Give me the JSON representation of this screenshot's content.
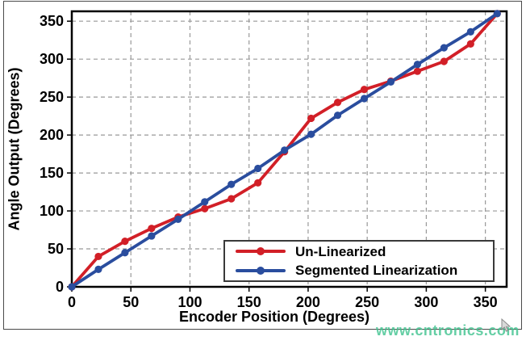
{
  "chart_data": {
    "type": "line",
    "title": "",
    "xlabel": "Encoder Position (Degrees)",
    "ylabel": "Angle Output (Degrees)",
    "x": [
      0,
      22.5,
      45,
      67.5,
      90,
      112.5,
      135,
      157.5,
      180,
      202.5,
      225,
      247.5,
      270,
      292.5,
      315,
      337.5,
      360
    ],
    "series": [
      {
        "name": "Un-Linearized",
        "color": "#d21f27",
        "values": [
          0,
          40,
          60,
          77,
          92,
          103,
          116,
          137,
          178,
          222,
          243,
          260,
          271,
          284,
          297,
          320,
          360
        ]
      },
      {
        "name": "Segmented Linearization",
        "color": "#2a4d9e",
        "values": [
          0,
          23,
          45,
          67,
          89,
          112,
          135,
          156,
          180,
          201,
          226,
          248,
          270,
          293,
          315,
          336,
          360
        ]
      }
    ],
    "xlim": [
      0,
      368
    ],
    "ylim": [
      0,
      363
    ],
    "x_ticks": [
      0,
      50,
      100,
      150,
      200,
      250,
      300,
      350
    ],
    "y_ticks": [
      0,
      50,
      100,
      150,
      200,
      250,
      300,
      350
    ],
    "grid": true,
    "grid_color": "#999999",
    "legend_position": "bottom-right"
  },
  "watermark": {
    "text": "www.cntronics.com",
    "color": "#3ec28e"
  }
}
